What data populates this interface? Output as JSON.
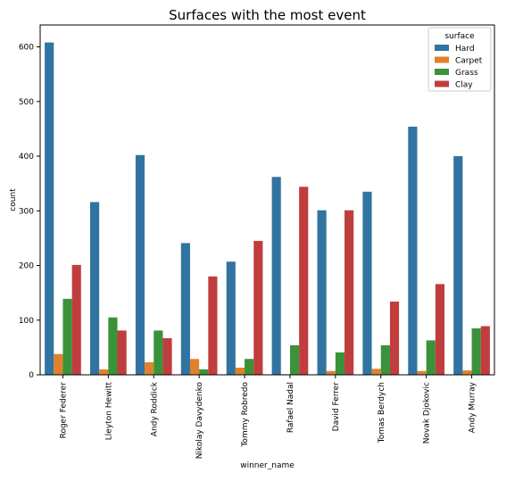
{
  "chart_data": {
    "type": "bar",
    "title": "Surfaces with the most event",
    "xlabel": "winner_name",
    "ylabel": "count",
    "ylim": [
      0,
      640
    ],
    "yticks": [
      0,
      100,
      200,
      300,
      400,
      500,
      600
    ],
    "grid": false,
    "legend_title": "surface",
    "legend_position": "top-right",
    "categories": [
      "Roger Federer",
      "Lleyton Hewitt",
      "Andy Roddick",
      "Nikolay Davydenko",
      "Tommy Robredo",
      "Rafael Nadal",
      "David Ferrer",
      "Tomas Berdych",
      "Novak Djokovic",
      "Andy Murray"
    ],
    "series": [
      {
        "name": "Hard",
        "color": "#3274a1",
        "values": [
          608,
          316,
          402,
          241,
          207,
          362,
          301,
          335,
          454,
          400
        ]
      },
      {
        "name": "Carpet",
        "color": "#e1812c",
        "values": [
          38,
          10,
          23,
          29,
          13,
          1,
          7,
          11,
          7,
          8
        ]
      },
      {
        "name": "Grass",
        "color": "#3a923a",
        "values": [
          139,
          105,
          81,
          10,
          29,
          54,
          41,
          54,
          63,
          85
        ]
      },
      {
        "name": "Clay",
        "color": "#c03d3e",
        "values": [
          201,
          81,
          67,
          180,
          245,
          344,
          301,
          134,
          166,
          89
        ]
      }
    ]
  }
}
